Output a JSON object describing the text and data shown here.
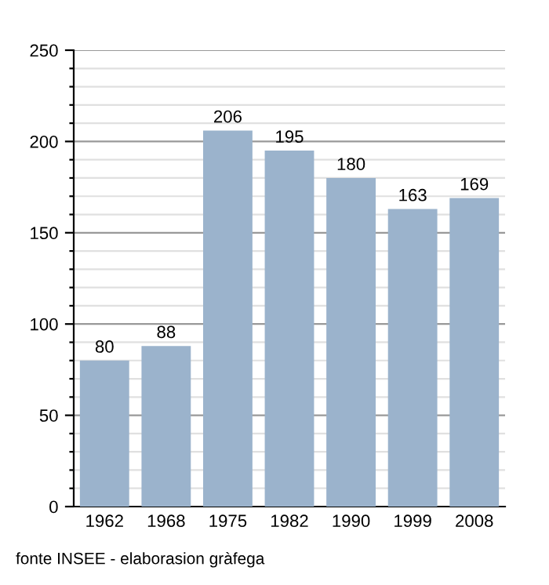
{
  "chart_data": {
    "type": "bar",
    "categories": [
      "1962",
      "1968",
      "1975",
      "1982",
      "1990",
      "1999",
      "2008"
    ],
    "values": [
      80,
      88,
      206,
      195,
      180,
      163,
      169
    ],
    "color": "#9bb3cc",
    "data_labels": true,
    "ylim": [
      0,
      250
    ],
    "yticks": [
      0,
      {
        "value": 10,
        "label": null
      },
      {
        "value": 20,
        "label": null
      },
      {
        "value": 30,
        "label": null
      },
      {
        "value": 40,
        "label": null
      },
      50,
      {
        "value": 60,
        "label": null
      },
      {
        "value": 70,
        "label": null
      },
      {
        "value": 80,
        "label": null
      },
      {
        "value": 90,
        "label": null
      },
      100,
      {
        "value": 110,
        "label": null
      },
      {
        "value": 120,
        "label": null
      },
      {
        "value": 130,
        "label": null
      },
      {
        "value": 140,
        "label": null
      },
      150,
      {
        "value": 160,
        "label": null
      },
      {
        "value": 170,
        "label": null
      },
      {
        "value": 180,
        "label": null
      },
      {
        "value": 190,
        "label": null
      },
      200,
      {
        "value": 210,
        "label": null
      },
      {
        "value": 220,
        "label": null
      },
      {
        "value": 230,
        "label": null
      },
      {
        "value": 240,
        "label": null
      },
      250
    ],
    "grid": "y",
    "annotations": [
      "fonte INSEE - elaborasion gràfega"
    ]
  }
}
